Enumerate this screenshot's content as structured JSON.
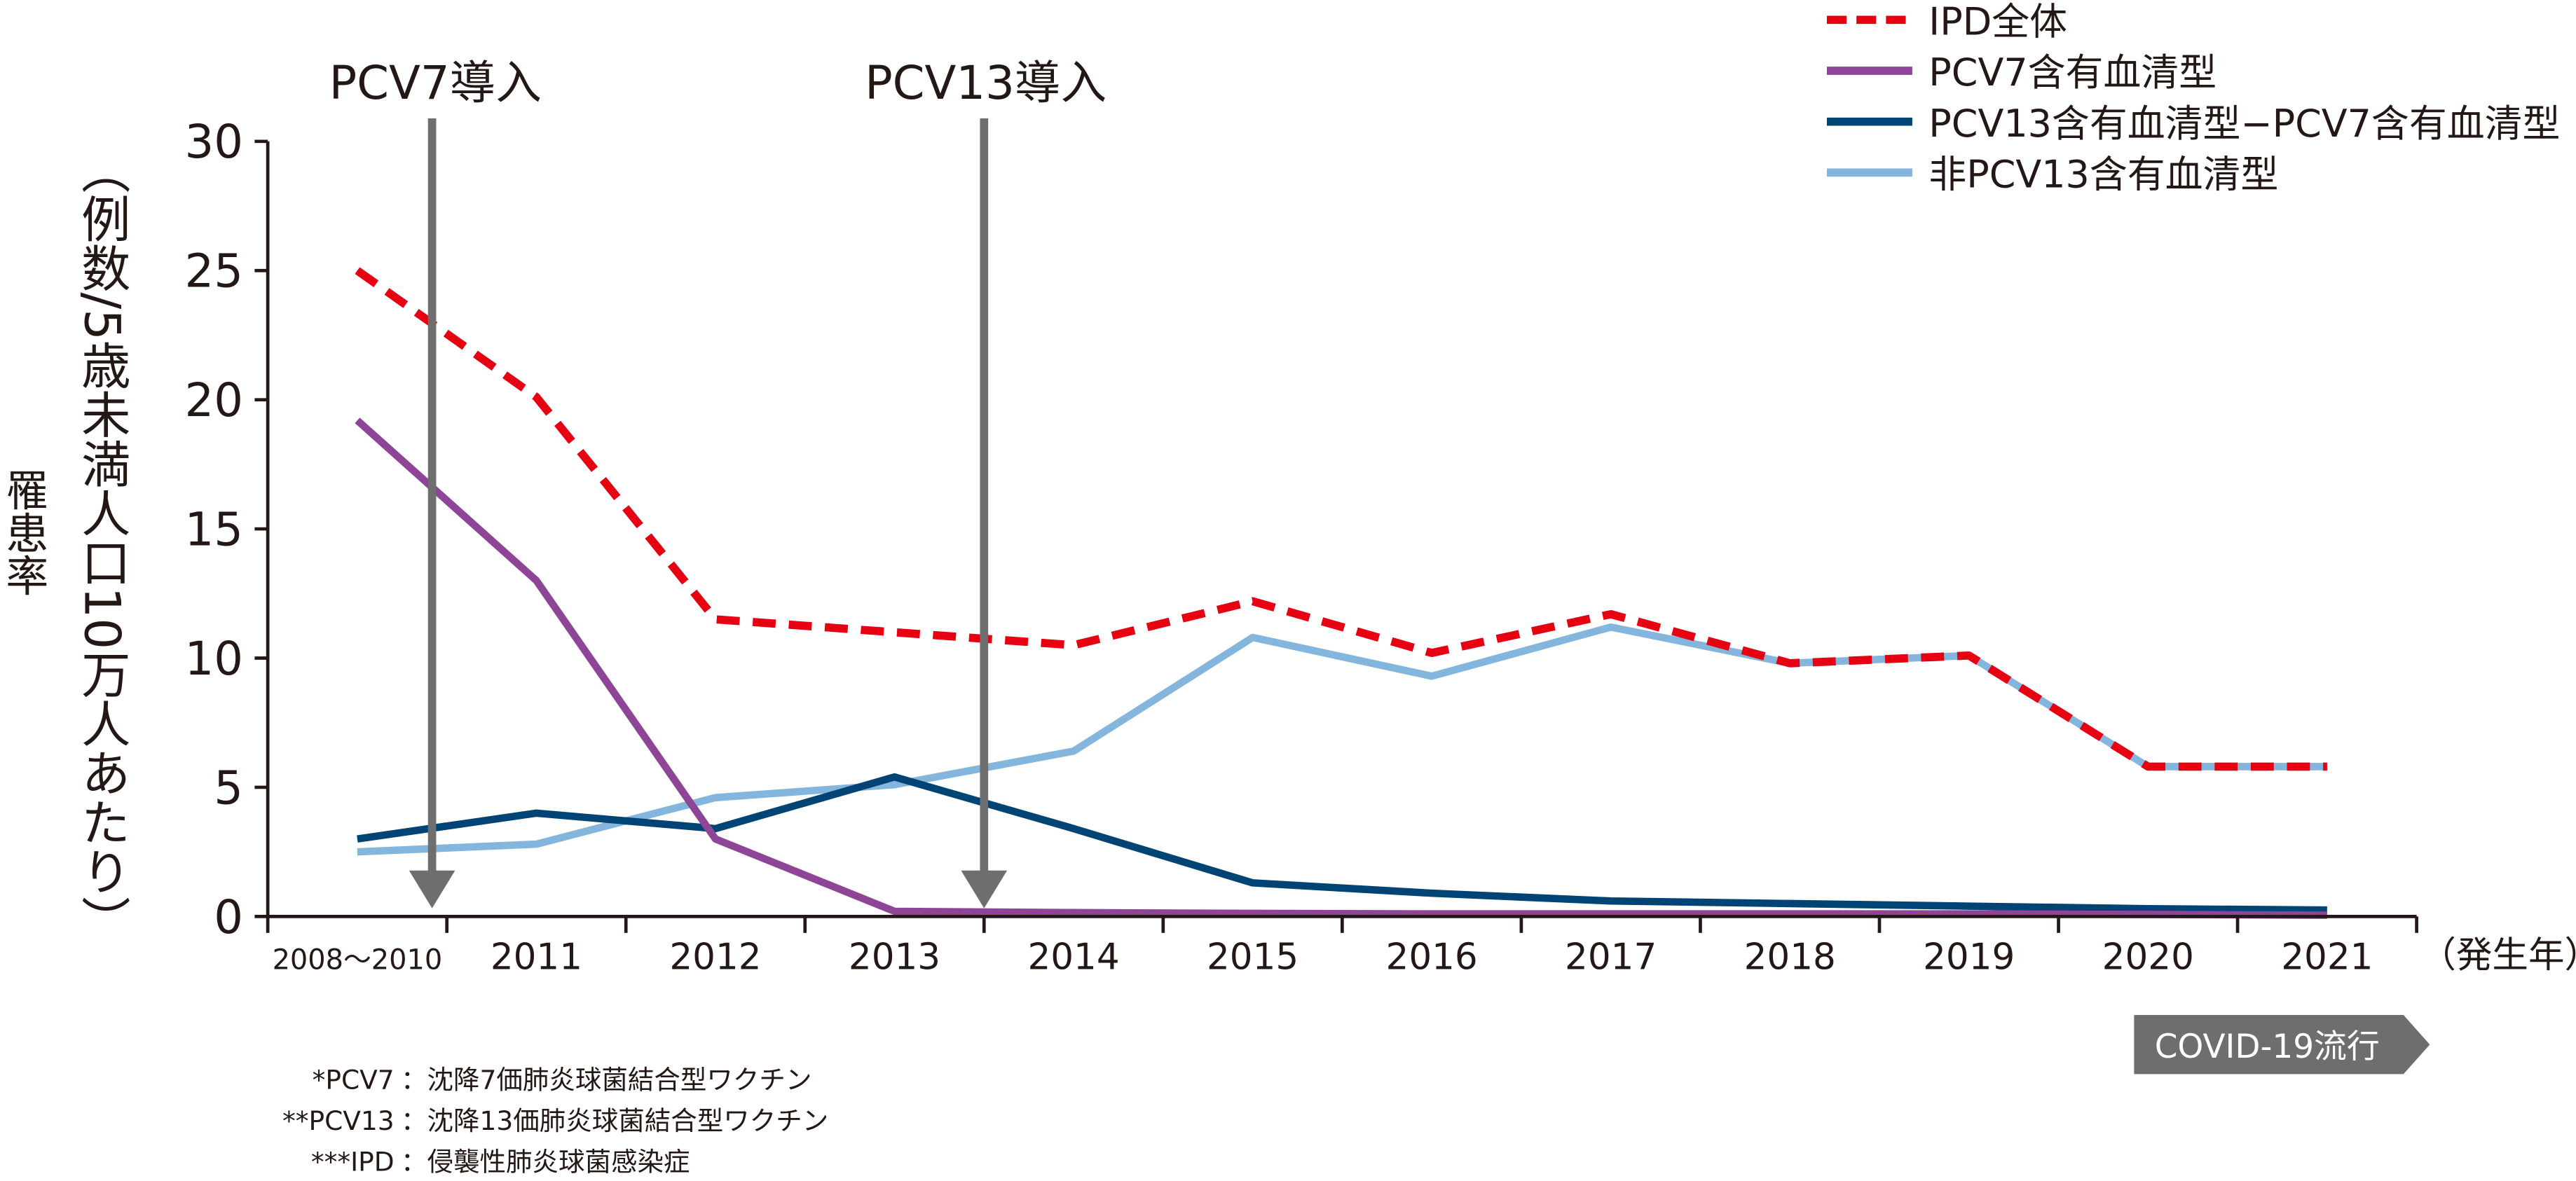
{
  "chart_data": {
    "type": "line",
    "title": "",
    "ylabel_main": "罹患率",
    "ylabel_unit": "（例数/5歳未満人口10万人あたり）",
    "xlabel": "（発生年）",
    "ylim": [
      0,
      30
    ],
    "yticks": [
      "0",
      "5",
      "10",
      "15",
      "20",
      "25",
      "30"
    ],
    "categories": [
      "2008～2010",
      "2011",
      "2012",
      "2013",
      "2014",
      "2015",
      "2016",
      "2017",
      "2018",
      "2019",
      "2020",
      "2021"
    ],
    "series": [
      {
        "name": "IPD全体",
        "color": "#e60012",
        "dashed": true,
        "values": [
          25,
          20.1,
          11.5,
          11.0,
          10.5,
          12.2,
          10.2,
          11.7,
          9.8,
          10.1,
          5.8,
          5.8
        ]
      },
      {
        "name": "PCV7含有血清型",
        "color": "#8e4597",
        "dashed": false,
        "values": [
          19.2,
          13.0,
          3.0,
          0.2,
          0.15,
          0.12,
          0.1,
          0.1,
          0.1,
          0.1,
          0.08,
          0.05
        ]
      },
      {
        "name": "PCV13含有血清型−PCV7含有血清型",
        "color": "#004375",
        "dashed": false,
        "values": [
          3.0,
          4.0,
          3.4,
          5.4,
          3.4,
          1.3,
          0.9,
          0.6,
          0.5,
          0.4,
          0.3,
          0.25
        ]
      },
      {
        "name": "非PCV13含有血清型",
        "color": "#84b5dc",
        "dashed": false,
        "values": [
          2.5,
          2.8,
          4.6,
          5.1,
          6.4,
          10.8,
          9.3,
          11.2,
          9.8,
          10.1,
          5.8,
          5.8
        ]
      }
    ],
    "annotations": [
      {
        "text": "PCV7導入",
        "at_year_boundary": "2010/2011"
      },
      {
        "text": "PCV13導入",
        "at_year_boundary": "2013/2014"
      },
      {
        "text": "COVID-19流行",
        "from": "2020"
      }
    ],
    "legend_position": "top-right",
    "footnotes": [
      {
        "key": "*PCV7",
        "text": "：沈降7価肺炎球菌結合型ワクチン"
      },
      {
        "key": "**PCV13",
        "text": "：沈降13価肺炎球菌結合型ワクチン"
      },
      {
        "key": "***IPD",
        "text": "：侵襲性肺炎球菌感染症"
      }
    ],
    "grid": false
  }
}
